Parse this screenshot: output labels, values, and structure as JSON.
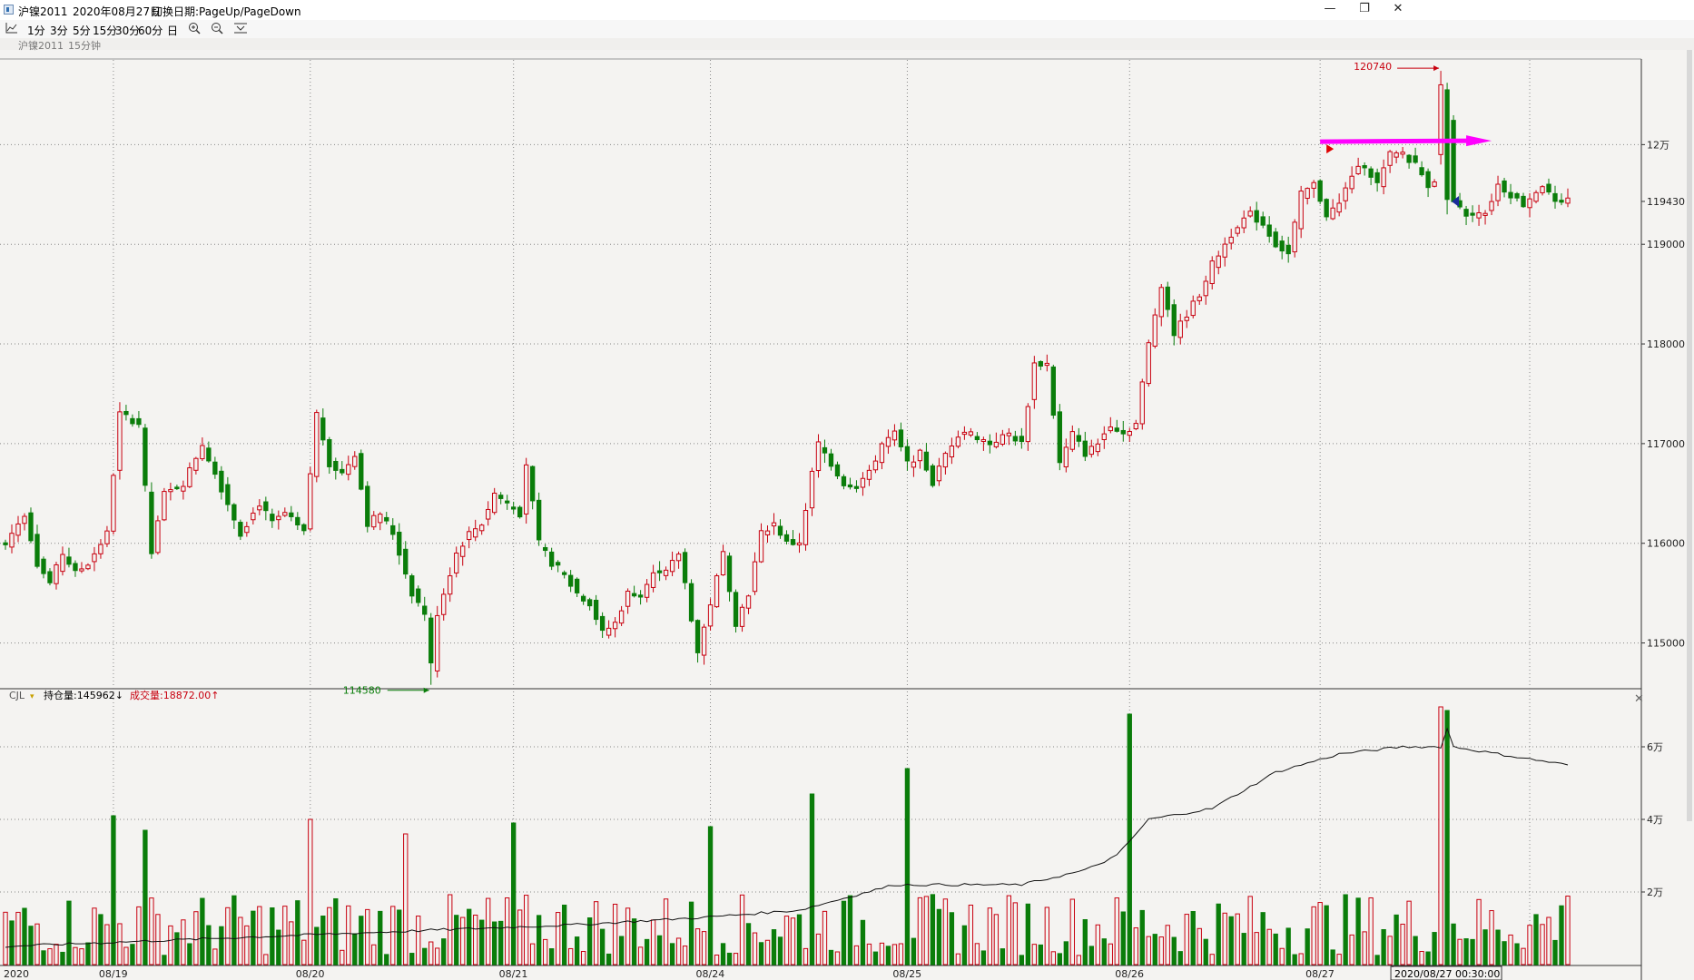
{
  "window": {
    "title": "沪镍2011",
    "date": "2020年08月27日",
    "hint": "切换日期:PageUp/PageDown",
    "minimize": "—",
    "restore": "❐",
    "close": "✕"
  },
  "toolbar": {
    "items": [
      "1分",
      "3分",
      "5分",
      "15分",
      "30分",
      "60分",
      "日"
    ]
  },
  "subheader": {
    "contract": "沪镍2011",
    "period": "15分钟"
  },
  "indicator": {
    "name": "CJL",
    "oi_text": "持仓量:145962↓",
    "vol_text": "成交量:18872.00↑",
    "close_icon": "✕"
  },
  "annotations": {
    "high_label": "120740",
    "low_label": "114580",
    "cursor_time": "2020/08/27 00:30:00"
  },
  "colors": {
    "up": "#c8000f",
    "down": "#0a7d0a",
    "grid": "#888888",
    "arrow": "#ff00ff",
    "oi_line": "#111111",
    "label_red": "#c8000f",
    "label_green": "#0a7d0a"
  },
  "chart_data": [
    {
      "type": "candlestick",
      "title": "沪镍2011 15分钟",
      "y_axis_labels": [
        {
          "value": 120000,
          "text": "12万"
        },
        {
          "value": 119430,
          "text": "119430"
        },
        {
          "value": 119000,
          "text": "119000"
        },
        {
          "value": 118000,
          "text": "118000"
        },
        {
          "value": 117000,
          "text": "117000"
        },
        {
          "value": 116000,
          "text": "116000"
        },
        {
          "value": 115000,
          "text": "115000"
        }
      ],
      "ylim": [
        114550,
        120850
      ],
      "x_tick_labels": [
        "2020",
        "08/19",
        "08/20",
        "08/21",
        "08/24",
        "08/25",
        "08/26",
        "08/27"
      ],
      "bars_total": 247,
      "high": 120740,
      "low": 114580,
      "last": 119430,
      "close_anchors": [
        [
          0,
          116000
        ],
        [
          3,
          116300
        ],
        [
          5,
          115800
        ],
        [
          7,
          115600
        ],
        [
          9,
          115900
        ],
        [
          11,
          115700
        ],
        [
          13,
          115800
        ],
        [
          16,
          116100
        ],
        [
          18,
          117300
        ],
        [
          21,
          117200
        ],
        [
          23,
          115900
        ],
        [
          25,
          116500
        ],
        [
          28,
          116600
        ],
        [
          31,
          117000
        ],
        [
          33,
          116700
        ],
        [
          35,
          116400
        ],
        [
          37,
          116100
        ],
        [
          40,
          116400
        ],
        [
          42,
          116200
        ],
        [
          44,
          116300
        ],
        [
          47,
          116100
        ],
        [
          49,
          117300
        ],
        [
          51,
          116800
        ],
        [
          53,
          116700
        ],
        [
          55,
          116900
        ],
        [
          57,
          116200
        ],
        [
          59,
          116300
        ],
        [
          61,
          116100
        ],
        [
          64,
          115500
        ],
        [
          66,
          115300
        ],
        [
          67,
          114700
        ],
        [
          68,
          115300
        ],
        [
          71,
          115900
        ],
        [
          73,
          116100
        ],
        [
          75,
          116200
        ],
        [
          77,
          116500
        ],
        [
          79,
          116400
        ],
        [
          81,
          116300
        ],
        [
          82,
          116800
        ],
        [
          84,
          116000
        ],
        [
          86,
          115800
        ],
        [
          88,
          115700
        ],
        [
          90,
          115500
        ],
        [
          92,
          115400
        ],
        [
          94,
          115100
        ],
        [
          96,
          115200
        ],
        [
          98,
          115500
        ],
        [
          100,
          115500
        ],
        [
          102,
          115700
        ],
        [
          104,
          115700
        ],
        [
          106,
          115900
        ],
        [
          107,
          115600
        ],
        [
          109,
          114900
        ],
        [
          111,
          115400
        ],
        [
          113,
          115900
        ],
        [
          115,
          115200
        ],
        [
          117,
          115500
        ],
        [
          119,
          116100
        ],
        [
          121,
          116200
        ],
        [
          123,
          116000
        ],
        [
          125,
          116000
        ],
        [
          127,
          116700
        ],
        [
          128,
          117000
        ],
        [
          130,
          116800
        ],
        [
          132,
          116600
        ],
        [
          134,
          116600
        ],
        [
          136,
          116700
        ],
        [
          138,
          117000
        ],
        [
          140,
          117100
        ],
        [
          142,
          116800
        ],
        [
          144,
          116900
        ],
        [
          146,
          116600
        ],
        [
          148,
          116900
        ],
        [
          150,
          117100
        ],
        [
          152,
          117100
        ],
        [
          155,
          117000
        ],
        [
          158,
          117100
        ],
        [
          160,
          117000
        ],
        [
          162,
          117800
        ],
        [
          164,
          117800
        ],
        [
          166,
          116800
        ],
        [
          168,
          117100
        ],
        [
          170,
          116900
        ],
        [
          172,
          117000
        ],
        [
          174,
          117200
        ],
        [
          176,
          117100
        ],
        [
          178,
          117200
        ],
        [
          180,
          118000
        ],
        [
          182,
          118600
        ],
        [
          184,
          118100
        ],
        [
          186,
          118300
        ],
        [
          188,
          118500
        ],
        [
          190,
          118800
        ],
        [
          192,
          119000
        ],
        [
          194,
          119200
        ],
        [
          196,
          119300
        ],
        [
          198,
          119200
        ],
        [
          200,
          119000
        ],
        [
          202,
          118900
        ],
        [
          204,
          119500
        ],
        [
          206,
          119600
        ],
        [
          208,
          119300
        ],
        [
          210,
          119400
        ],
        [
          212,
          119700
        ],
        [
          214,
          119800
        ],
        [
          216,
          119600
        ],
        [
          218,
          119900
        ],
        [
          220,
          119900
        ],
        [
          222,
          119800
        ],
        [
          224,
          119600
        ],
        [
          226,
          119700
        ],
        [
          227,
          120200
        ],
        [
          228,
          119400
        ],
        [
          230,
          119300
        ],
        [
          233,
          119300
        ],
        [
          235,
          119600
        ],
        [
          237,
          119500
        ],
        [
          239,
          119400
        ],
        [
          242,
          119600
        ],
        [
          244,
          119400
        ],
        [
          246,
          119430
        ]
      ]
    },
    {
      "type": "bar",
      "title": "CJL",
      "series": [
        {
          "name": "成交量"
        },
        {
          "name": "持仓量"
        }
      ],
      "y_axis_labels": [
        {
          "value": 60000,
          "text": "6万"
        },
        {
          "value": 40000,
          "text": "4万"
        },
        {
          "value": 20000,
          "text": "2万"
        }
      ],
      "ylim": [
        0,
        72000
      ],
      "volume_peaks": [
        [
          17,
          41000
        ],
        [
          22,
          37000
        ],
        [
          48,
          40000
        ],
        [
          63,
          36000
        ],
        [
          80,
          39000
        ],
        [
          111,
          38000
        ],
        [
          127,
          47000
        ],
        [
          142,
          54000
        ],
        [
          177,
          69000
        ],
        [
          226,
          71000
        ],
        [
          227,
          70000
        ],
        [
          246,
          18872
        ]
      ],
      "oi_anchors": [
        [
          0,
          5000
        ],
        [
          30,
          7000
        ],
        [
          60,
          9000
        ],
        [
          90,
          11000
        ],
        [
          110,
          13000
        ],
        [
          125,
          15000
        ],
        [
          140,
          22000
        ],
        [
          160,
          22000
        ],
        [
          170,
          26000
        ],
        [
          175,
          30000
        ],
        [
          180,
          40000
        ],
        [
          190,
          43000
        ],
        [
          200,
          53000
        ],
        [
          210,
          58000
        ],
        [
          220,
          60000
        ],
        [
          226,
          60000
        ],
        [
          227,
          65000
        ],
        [
          228,
          60000
        ],
        [
          235,
          58000
        ],
        [
          246,
          55000
        ]
      ]
    }
  ]
}
